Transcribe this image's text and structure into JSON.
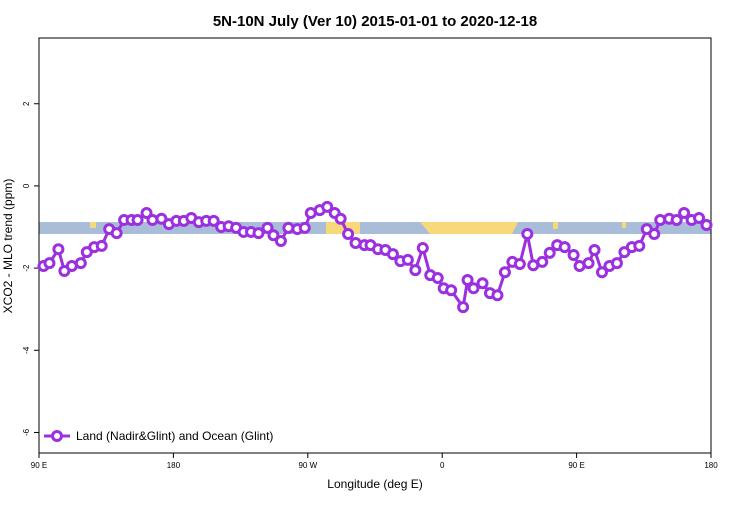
{
  "chart_data": {
    "type": "line",
    "title": "5N-10N July (Ver 10)   2015-01-01 to 2020-12-18",
    "x_label": "Longitude (deg E)",
    "y_label": "XCO2 - MLO trend (ppm)",
    "x": [
      93,
      97,
      103,
      107,
      112,
      118,
      122,
      127,
      132,
      137,
      142,
      147,
      152,
      156,
      162,
      166,
      172,
      177,
      182,
      187,
      192,
      197,
      202,
      207,
      212,
      217,
      222,
      227,
      232,
      237,
      243,
      247,
      252,
      257,
      263,
      268,
      272,
      278,
      283,
      288,
      292,
      297,
      302,
      308,
      312,
      317,
      322,
      327,
      332,
      337,
      342,
      347,
      352,
      357,
      361,
      366,
      374,
      377,
      381,
      387,
      392,
      397,
      402,
      407,
      412,
      417,
      421,
      427,
      432,
      437,
      442,
      448,
      452,
      458,
      462,
      467,
      472,
      477,
      482,
      487,
      492,
      497,
      502,
      506,
      512,
      517,
      522,
      527,
      532,
      537
    ],
    "series": [
      {
        "name": "Land (Nadir&Glint) and Ocean (Glint)",
        "color": "#9b30e0",
        "values": [
          -1.95,
          -1.88,
          -1.54,
          -2.07,
          -1.95,
          -1.88,
          -1.61,
          -1.49,
          -1.46,
          -1.05,
          -1.15,
          -0.83,
          -0.83,
          -0.83,
          -0.66,
          -0.83,
          -0.8,
          -0.93,
          -0.85,
          -0.85,
          -0.78,
          -0.88,
          -0.85,
          -0.85,
          -1.0,
          -0.98,
          -1.02,
          -1.12,
          -1.12,
          -1.15,
          -1.02,
          -1.2,
          -1.34,
          -1.02,
          -1.05,
          -1.02,
          -0.66,
          -0.59,
          -0.51,
          -0.66,
          -0.8,
          -1.17,
          -1.39,
          -1.44,
          -1.44,
          -1.54,
          -1.56,
          -1.66,
          -1.83,
          -1.8,
          -2.05,
          -1.51,
          -2.17,
          -2.24,
          -2.49,
          -2.54,
          -2.95,
          -2.29,
          -2.49,
          -2.37,
          -2.61,
          -2.66,
          -2.1,
          -1.85,
          -1.9,
          -1.17,
          -1.93,
          -1.85,
          -1.63,
          -1.44,
          -1.49,
          -1.68,
          -1.95,
          -1.88,
          -1.56,
          -2.1,
          -1.95,
          -1.88,
          -1.61,
          -1.49,
          -1.46,
          -1.05,
          -1.17,
          -0.83,
          -0.8,
          -0.83,
          -0.66,
          -0.83,
          -0.78,
          -0.95
        ]
      }
    ],
    "xlim": [
      90,
      540
    ],
    "xticks": [
      {
        "value": 90,
        "label": "90 E"
      },
      180,
      {
        "value": 270,
        "label": "90 W"
      },
      {
        "value": 360,
        "label": "0"
      },
      {
        "value": 450,
        "label": "90 E"
      },
      {
        "value": 540,
        "label": "180"
      }
    ],
    "ylim": [
      -6.5,
      3.6
    ],
    "yticks": [
      -6,
      -4,
      -2,
      0,
      2
    ],
    "legend": "bottom-left"
  }
}
